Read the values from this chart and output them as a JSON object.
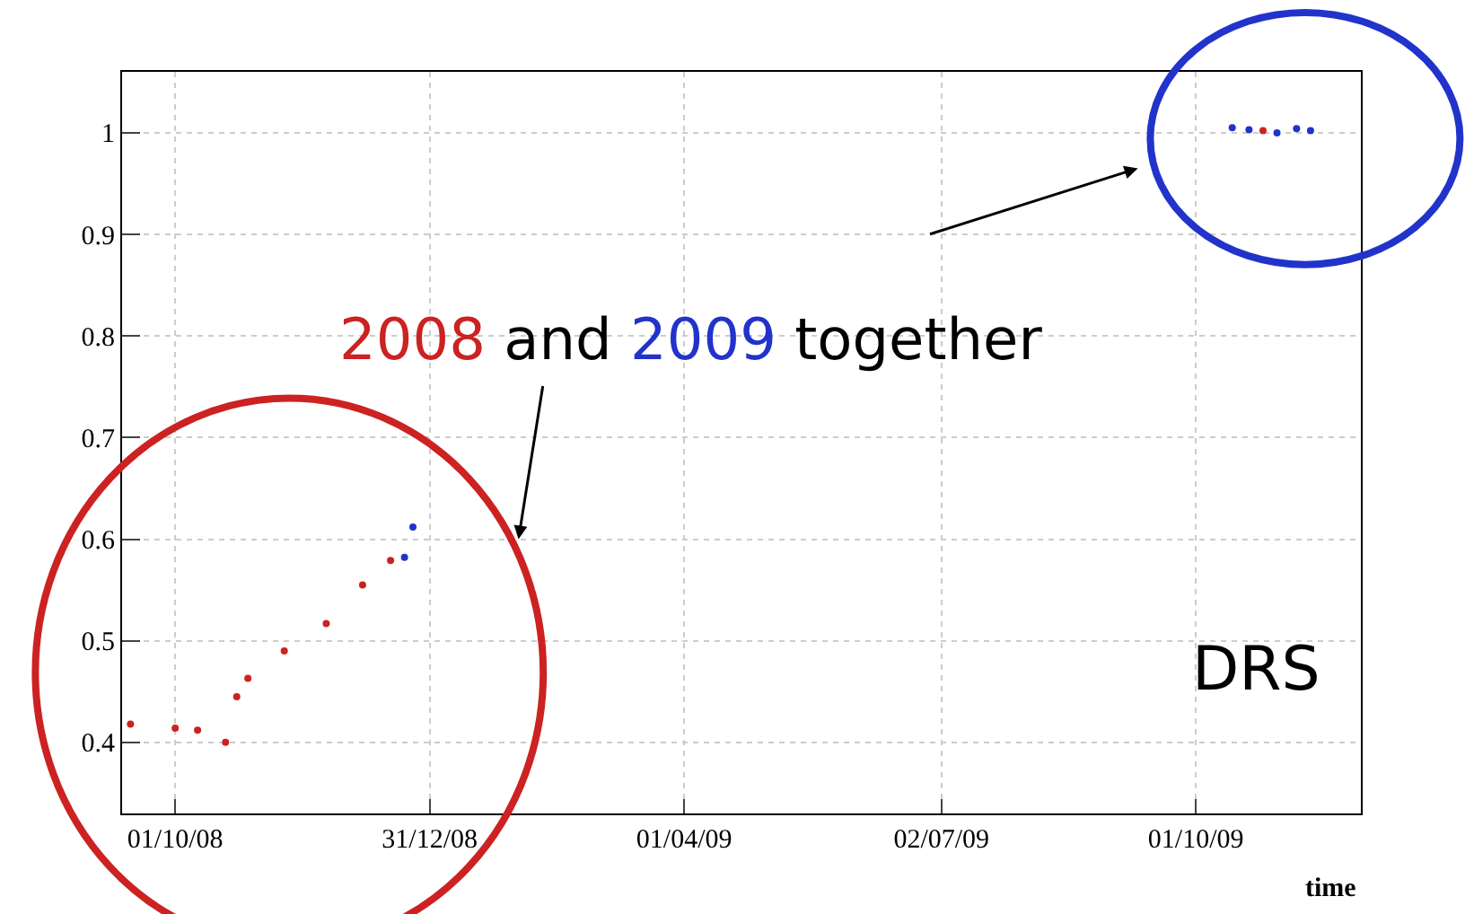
{
  "chart_data": {
    "type": "scatter",
    "xlabel": "time",
    "series": [
      {
        "color": "#cc2222",
        "x": [
          "2008-09-15",
          "2008-10-01",
          "2008-10-09",
          "2008-10-19",
          null,
          "2008-10-23",
          "2008-10-27",
          "2008-11-09",
          "2008-11-24",
          "2008-12-07",
          "2008-12-17",
          "2009-10-25"
        ],
        "values": [
          0.418,
          0.414,
          0.412,
          0.4,
          null,
          0.445,
          0.463,
          0.49,
          0.517,
          0.555,
          0.579,
          1.002
        ]
      },
      {
        "color": "#2233cc",
        "x": [
          "2008-12-22",
          "2008-12-25",
          "2009-10-14",
          "2009-10-20",
          "2009-10-30",
          "2009-11-06",
          "2009-11-11"
        ],
        "values": [
          0.582,
          0.612,
          1.005,
          1.003,
          1.0,
          1.004,
          1.002
        ]
      }
    ],
    "xlim": [
      "2008-09-12",
      "2009-11-29"
    ],
    "xticks": [
      {
        "value": "2008-10-01",
        "label": "01/10/08"
      },
      {
        "value": "2008-12-31",
        "label": "31/12/08"
      },
      {
        "value": "2009-04-01",
        "label": "01/04/09"
      },
      {
        "value": "2009-07-02",
        "label": "02/07/09"
      },
      {
        "value": "2009-10-01",
        "label": "01/10/09"
      }
    ],
    "ylim": [
      0.33,
      1.06
    ],
    "yticks": [
      0.4,
      0.5,
      0.6,
      0.7,
      0.8,
      0.9,
      1
    ],
    "grid": true,
    "marker": "circle",
    "annotations": [
      "2008 and 2009 together",
      "DRS"
    ]
  }
}
